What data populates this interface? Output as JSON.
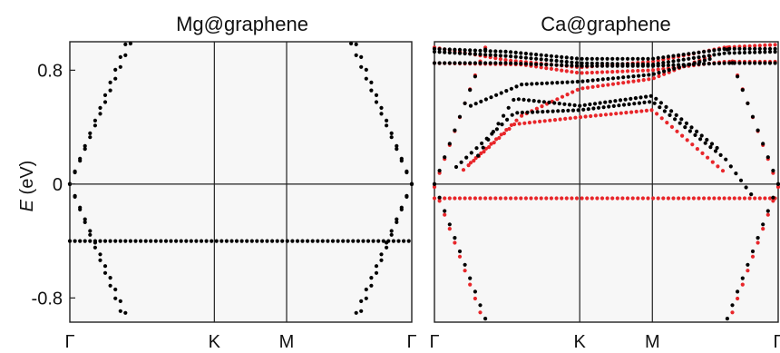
{
  "chart_data": [
    {
      "type": "scatter",
      "title": "Mg@graphene",
      "ylabel_symbol": "E",
      "ylabel_unit": "(eV)",
      "ylim": [
        -0.97,
        1.0
      ],
      "yticks": [
        {
          "v": 0.8,
          "label": "0.8"
        },
        {
          "v": 0.0,
          "label": "0"
        },
        {
          "v": -0.8,
          "label": "-0.8"
        }
      ],
      "kpoints": [
        {
          "x": 0.0,
          "label": "Γ"
        },
        {
          "x": 1.0,
          "label": "K"
        },
        {
          "x": 1.5,
          "label": "M"
        },
        {
          "x": 2.366,
          "label": "Γ"
        }
      ],
      "series": [
        {
          "color": "#000000",
          "bands": [
            {
              "kind": "flat",
              "e": -0.4
            },
            {
              "kind": "cone",
              "from": "left",
              "slope": 2.55,
              "xmax": 0.42,
              "offset": 0.0
            },
            {
              "kind": "cone",
              "from": "left",
              "slope": 2.35,
              "xmax": 0.48,
              "offset": 0.0
            },
            {
              "kind": "cone",
              "from": "right",
              "slope": 2.55,
              "xmax": 0.42,
              "offset": 0.0
            },
            {
              "kind": "cone",
              "from": "right",
              "slope": 2.35,
              "xmax": 0.48,
              "offset": 0.0
            }
          ]
        }
      ]
    },
    {
      "type": "scatter",
      "title": "Ca@graphene",
      "ylim": [
        -0.97,
        1.0
      ],
      "kpoints": [
        {
          "x": 0.0,
          "label": "Γ"
        },
        {
          "x": 1.0,
          "label": "K"
        },
        {
          "x": 1.5,
          "label": "M"
        },
        {
          "x": 2.366,
          "label": "Γ"
        }
      ],
      "series": [
        {
          "color": "#e8262a",
          "bands": [
            {
              "kind": "flat",
              "e": -0.1
            },
            {
              "kind": "cone",
              "from": "left",
              "slope": 2.8,
              "xmax": 0.42,
              "offset": -0.02
            },
            {
              "kind": "cone",
              "from": "right",
              "slope": 2.8,
              "xmax": 0.42,
              "offset": -0.02
            },
            {
              "kind": "path",
              "pts": [
                [
                  0.0,
                  0.96
                ],
                [
                  0.5,
                  0.87
                ],
                [
                  1.0,
                  0.82
                ],
                [
                  1.5,
                  0.86
                ],
                [
                  2.0,
                  0.96
                ],
                [
                  2.366,
                  0.98
                ]
              ]
            },
            {
              "kind": "path",
              "pts": [
                [
                  0.0,
                  0.85
                ],
                [
                  0.6,
                  0.84
                ],
                [
                  1.0,
                  0.78
                ],
                [
                  1.5,
                  0.8
                ],
                [
                  2.0,
                  0.86
                ],
                [
                  2.366,
                  0.86
                ]
              ]
            },
            {
              "kind": "path",
              "pts": [
                [
                  0.2,
                  0.1
                ],
                [
                  0.55,
                  0.42
                ],
                [
                  1.0,
                  0.47
                ],
                [
                  1.5,
                  0.52
                ],
                [
                  2.0,
                  0.08
                ]
              ]
            },
            {
              "kind": "path",
              "pts": [
                [
                  0.25,
                  0.15
                ],
                [
                  0.6,
                  0.48
                ],
                [
                  1.0,
                  0.67
                ],
                [
                  1.5,
                  0.74
                ],
                [
                  1.9,
                  0.9
                ]
              ]
            }
          ]
        },
        {
          "color": "#000000",
          "bands": [
            {
              "kind": "cone",
              "from": "left",
              "slope": 2.7,
              "xmax": 0.4,
              "offset": 0.0
            },
            {
              "kind": "cone",
              "from": "right",
              "slope": 2.7,
              "xmax": 0.4,
              "offset": 0.0
            },
            {
              "kind": "path",
              "pts": [
                [
                  0.0,
                  0.95
                ],
                [
                  0.5,
                  0.93
                ],
                [
                  1.0,
                  0.88
                ],
                [
                  1.5,
                  0.88
                ],
                [
                  2.0,
                  0.95
                ],
                [
                  2.366,
                  0.95
                ]
              ]
            },
            {
              "kind": "path",
              "pts": [
                [
                  0.0,
                  0.93
                ],
                [
                  0.5,
                  0.9
                ],
                [
                  1.0,
                  0.85
                ],
                [
                  1.5,
                  0.84
                ],
                [
                  2.0,
                  0.92
                ],
                [
                  2.366,
                  0.93
                ]
              ]
            },
            {
              "kind": "path",
              "pts": [
                [
                  0.0,
                  0.85
                ],
                [
                  0.5,
                  0.85
                ],
                [
                  1.0,
                  0.83
                ],
                [
                  1.5,
                  0.83
                ],
                [
                  2.0,
                  0.85
                ],
                [
                  2.366,
                  0.85
                ]
              ]
            },
            {
              "kind": "path",
              "pts": [
                [
                  0.25,
                  0.55
                ],
                [
                  0.6,
                  0.7
                ],
                [
                  1.0,
                  0.72
                ],
                [
                  1.5,
                  0.77
                ],
                [
                  1.9,
                  0.88
                ]
              ]
            },
            {
              "kind": "path",
              "pts": [
                [
                  0.15,
                  0.12
                ],
                [
                  0.55,
                  0.5
                ],
                [
                  1.0,
                  0.52
                ],
                [
                  1.5,
                  0.58
                ],
                [
                  2.0,
                  0.18
                ],
                [
                  2.2,
                  -0.1
                ]
              ]
            },
            {
              "kind": "path",
              "pts": [
                [
                  0.3,
                  0.2
                ],
                [
                  0.55,
                  0.6
                ],
                [
                  1.0,
                  0.55
                ],
                [
                  1.5,
                  0.62
                ],
                [
                  1.95,
                  0.25
                ]
              ]
            }
          ]
        }
      ]
    }
  ]
}
